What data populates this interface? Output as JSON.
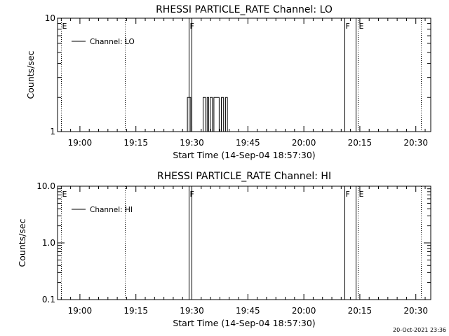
{
  "chart_data": [
    {
      "type": "line",
      "title": "RHESSI PARTICLE_RATE Channel: LO",
      "xlabel": "Start Time (14-Sep-04 18:57:30)",
      "ylabel": "Counts/sec",
      "x_tick_labels": [
        "19:00",
        "19:15",
        "19:30",
        "19:45",
        "20:00",
        "20:15",
        "20:30"
      ],
      "y_tick_labels": [
        "1",
        "10"
      ],
      "y_scale": "log",
      "ylim": [
        1,
        10
      ],
      "legend": {
        "label": "Channel: LO",
        "placement": "top-left"
      },
      "series": [
        {
          "name": "Channel: LO",
          "points": [
            [
              30.5,
              1
            ],
            [
              31.3,
              1
            ],
            [
              31.3,
              2
            ],
            [
              32.2,
              2
            ],
            [
              32.2,
              1
            ],
            [
              35.5,
              1
            ],
            [
              35.5,
              2
            ],
            [
              36.2,
              2
            ],
            [
              36.2,
              1
            ],
            [
              36.6,
              1
            ],
            [
              36.6,
              2
            ],
            [
              37.0,
              2
            ],
            [
              37.0,
              1
            ],
            [
              37.4,
              1
            ],
            [
              37.4,
              2
            ],
            [
              38.0,
              2
            ],
            [
              38.0,
              1
            ],
            [
              38.4,
              1
            ],
            [
              38.4,
              2
            ],
            [
              39.8,
              2
            ],
            [
              39.8,
              1
            ],
            [
              40.4,
              1
            ],
            [
              40.4,
              2
            ],
            [
              41.0,
              2
            ],
            [
              41.0,
              1
            ],
            [
              41.5,
              1
            ],
            [
              41.5,
              2
            ],
            [
              42.0,
              2
            ],
            [
              42.0,
              1
            ]
          ]
        }
      ],
      "markers": [
        {
          "label": "E",
          "x": -2.5,
          "style": "dotted"
        },
        {
          "label": "",
          "x": 14.5,
          "style": "dotted"
        },
        {
          "label": "F",
          "x": 31.6,
          "style": "solid"
        },
        {
          "label": "",
          "x": 32.4,
          "style": "solid"
        },
        {
          "label": "F",
          "x": 73.3,
          "style": "solid"
        },
        {
          "label": "",
          "x": 76.4,
          "style": "solid"
        },
        {
          "label": "E",
          "x": 77.0,
          "style": "dotted"
        },
        {
          "label": "",
          "x": 93.9,
          "style": "dotted"
        }
      ]
    },
    {
      "type": "line",
      "title": "RHESSI PARTICLE_RATE Channel: HI",
      "xlabel": "Start Time (14-Sep-04 18:57:30)",
      "ylabel": "Counts/sec",
      "x_tick_labels": [
        "19:00",
        "19:15",
        "19:30",
        "19:45",
        "20:00",
        "20:15",
        "20:30"
      ],
      "y_tick_labels": [
        "0.1",
        "1.0",
        "10.0"
      ],
      "y_scale": "log",
      "ylim": [
        0.1,
        10
      ],
      "legend": {
        "label": "Channel: HI",
        "placement": "top-left"
      },
      "series": [
        {
          "name": "Channel: HI",
          "points": []
        }
      ],
      "markers": [
        {
          "label": "E",
          "x": -2.5,
          "style": "dotted"
        },
        {
          "label": "",
          "x": 14.5,
          "style": "dotted"
        },
        {
          "label": "F",
          "x": 31.6,
          "style": "solid"
        },
        {
          "label": "",
          "x": 32.4,
          "style": "solid"
        },
        {
          "label": "F",
          "x": 73.3,
          "style": "solid"
        },
        {
          "label": "",
          "x": 76.4,
          "style": "solid"
        },
        {
          "label": "E",
          "x": 77.0,
          "style": "dotted"
        },
        {
          "label": "",
          "x": 93.9,
          "style": "dotted"
        }
      ]
    }
  ],
  "timestamp": "20-Oct-2021 23:36"
}
